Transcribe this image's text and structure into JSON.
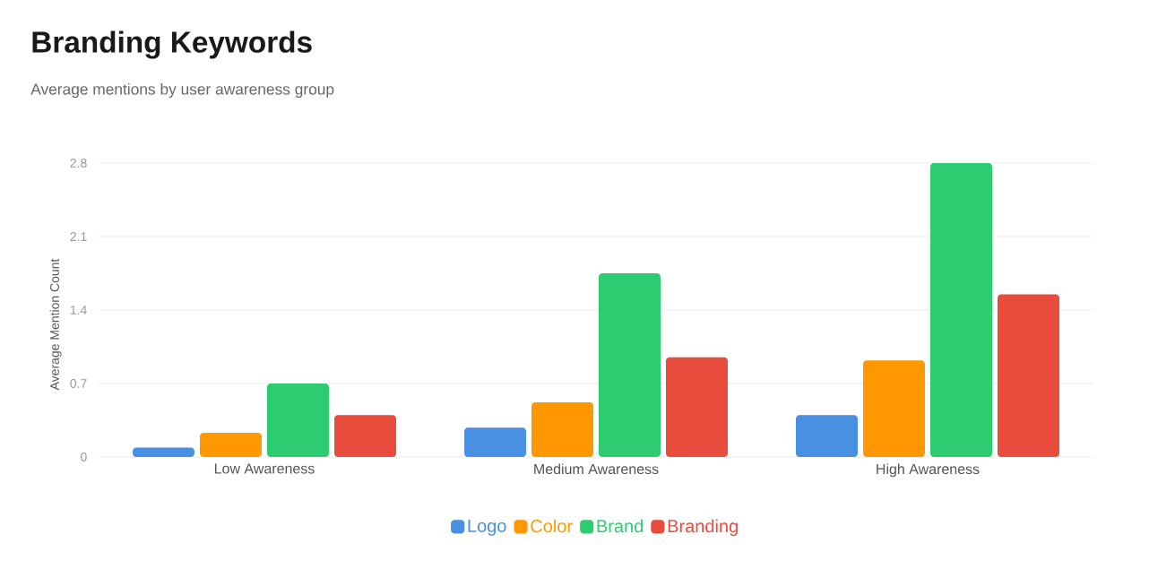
{
  "chart_data": {
    "type": "bar",
    "title": "Branding Keywords",
    "subtitle": "Average mentions by user awareness group",
    "ylabel": "Average Mention Count",
    "categories": [
      "Low Awareness",
      "Medium Awareness",
      "High Awareness"
    ],
    "series": [
      {
        "name": "Logo",
        "color": "#4a90e2",
        "values": [
          0.09,
          0.28,
          0.4
        ]
      },
      {
        "name": "Color",
        "color": "#ff9800",
        "values": [
          0.23,
          0.52,
          0.92
        ]
      },
      {
        "name": "Brand",
        "color": "#2ecc71",
        "values": [
          0.7,
          1.75,
          2.8
        ]
      },
      {
        "name": "Branding",
        "color": "#e74c3c",
        "values": [
          0.4,
          0.95,
          1.55
        ]
      }
    ],
    "ylim": [
      0,
      2.8
    ],
    "yticks": [
      0,
      0.7,
      1.4,
      2.1,
      2.8
    ],
    "grid": "y",
    "legend": "bottom"
  }
}
